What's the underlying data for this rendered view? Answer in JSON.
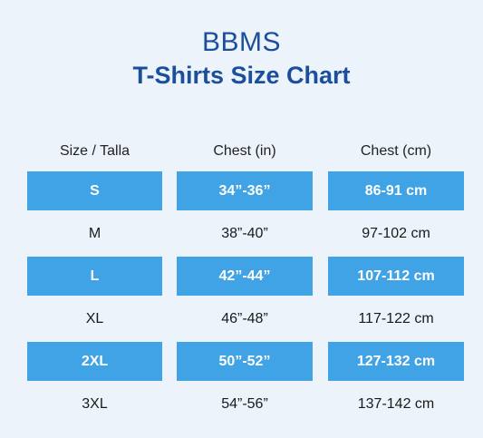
{
  "header": {
    "brand": "BBMS",
    "title": "T-Shirts Size Chart"
  },
  "table": {
    "columns": [
      "Size / Talla",
      "Chest (in)",
      "Chest (cm)"
    ],
    "rows": [
      {
        "size": "S",
        "chest_in": "34”-36”",
        "chest_cm": "86-91 cm",
        "highlighted": true
      },
      {
        "size": "M",
        "chest_in": "38”-40”",
        "chest_cm": "97-102 cm",
        "highlighted": false
      },
      {
        "size": "L",
        "chest_in": "42”-44”",
        "chest_cm": "107-112 cm",
        "highlighted": true
      },
      {
        "size": "XL",
        "chest_in": "46”-48”",
        "chest_cm": "117-122 cm",
        "highlighted": false
      },
      {
        "size": "2XL",
        "chest_in": "50”-52”",
        "chest_cm": "127-132 cm",
        "highlighted": true
      },
      {
        "size": "3XL",
        "chest_in": "54”-56”",
        "chest_cm": "137-142 cm",
        "highlighted": false
      }
    ]
  },
  "colors": {
    "background": "#edf3fb",
    "title": "#1b4f9c",
    "highlight_row": "#3fa3e6"
  }
}
